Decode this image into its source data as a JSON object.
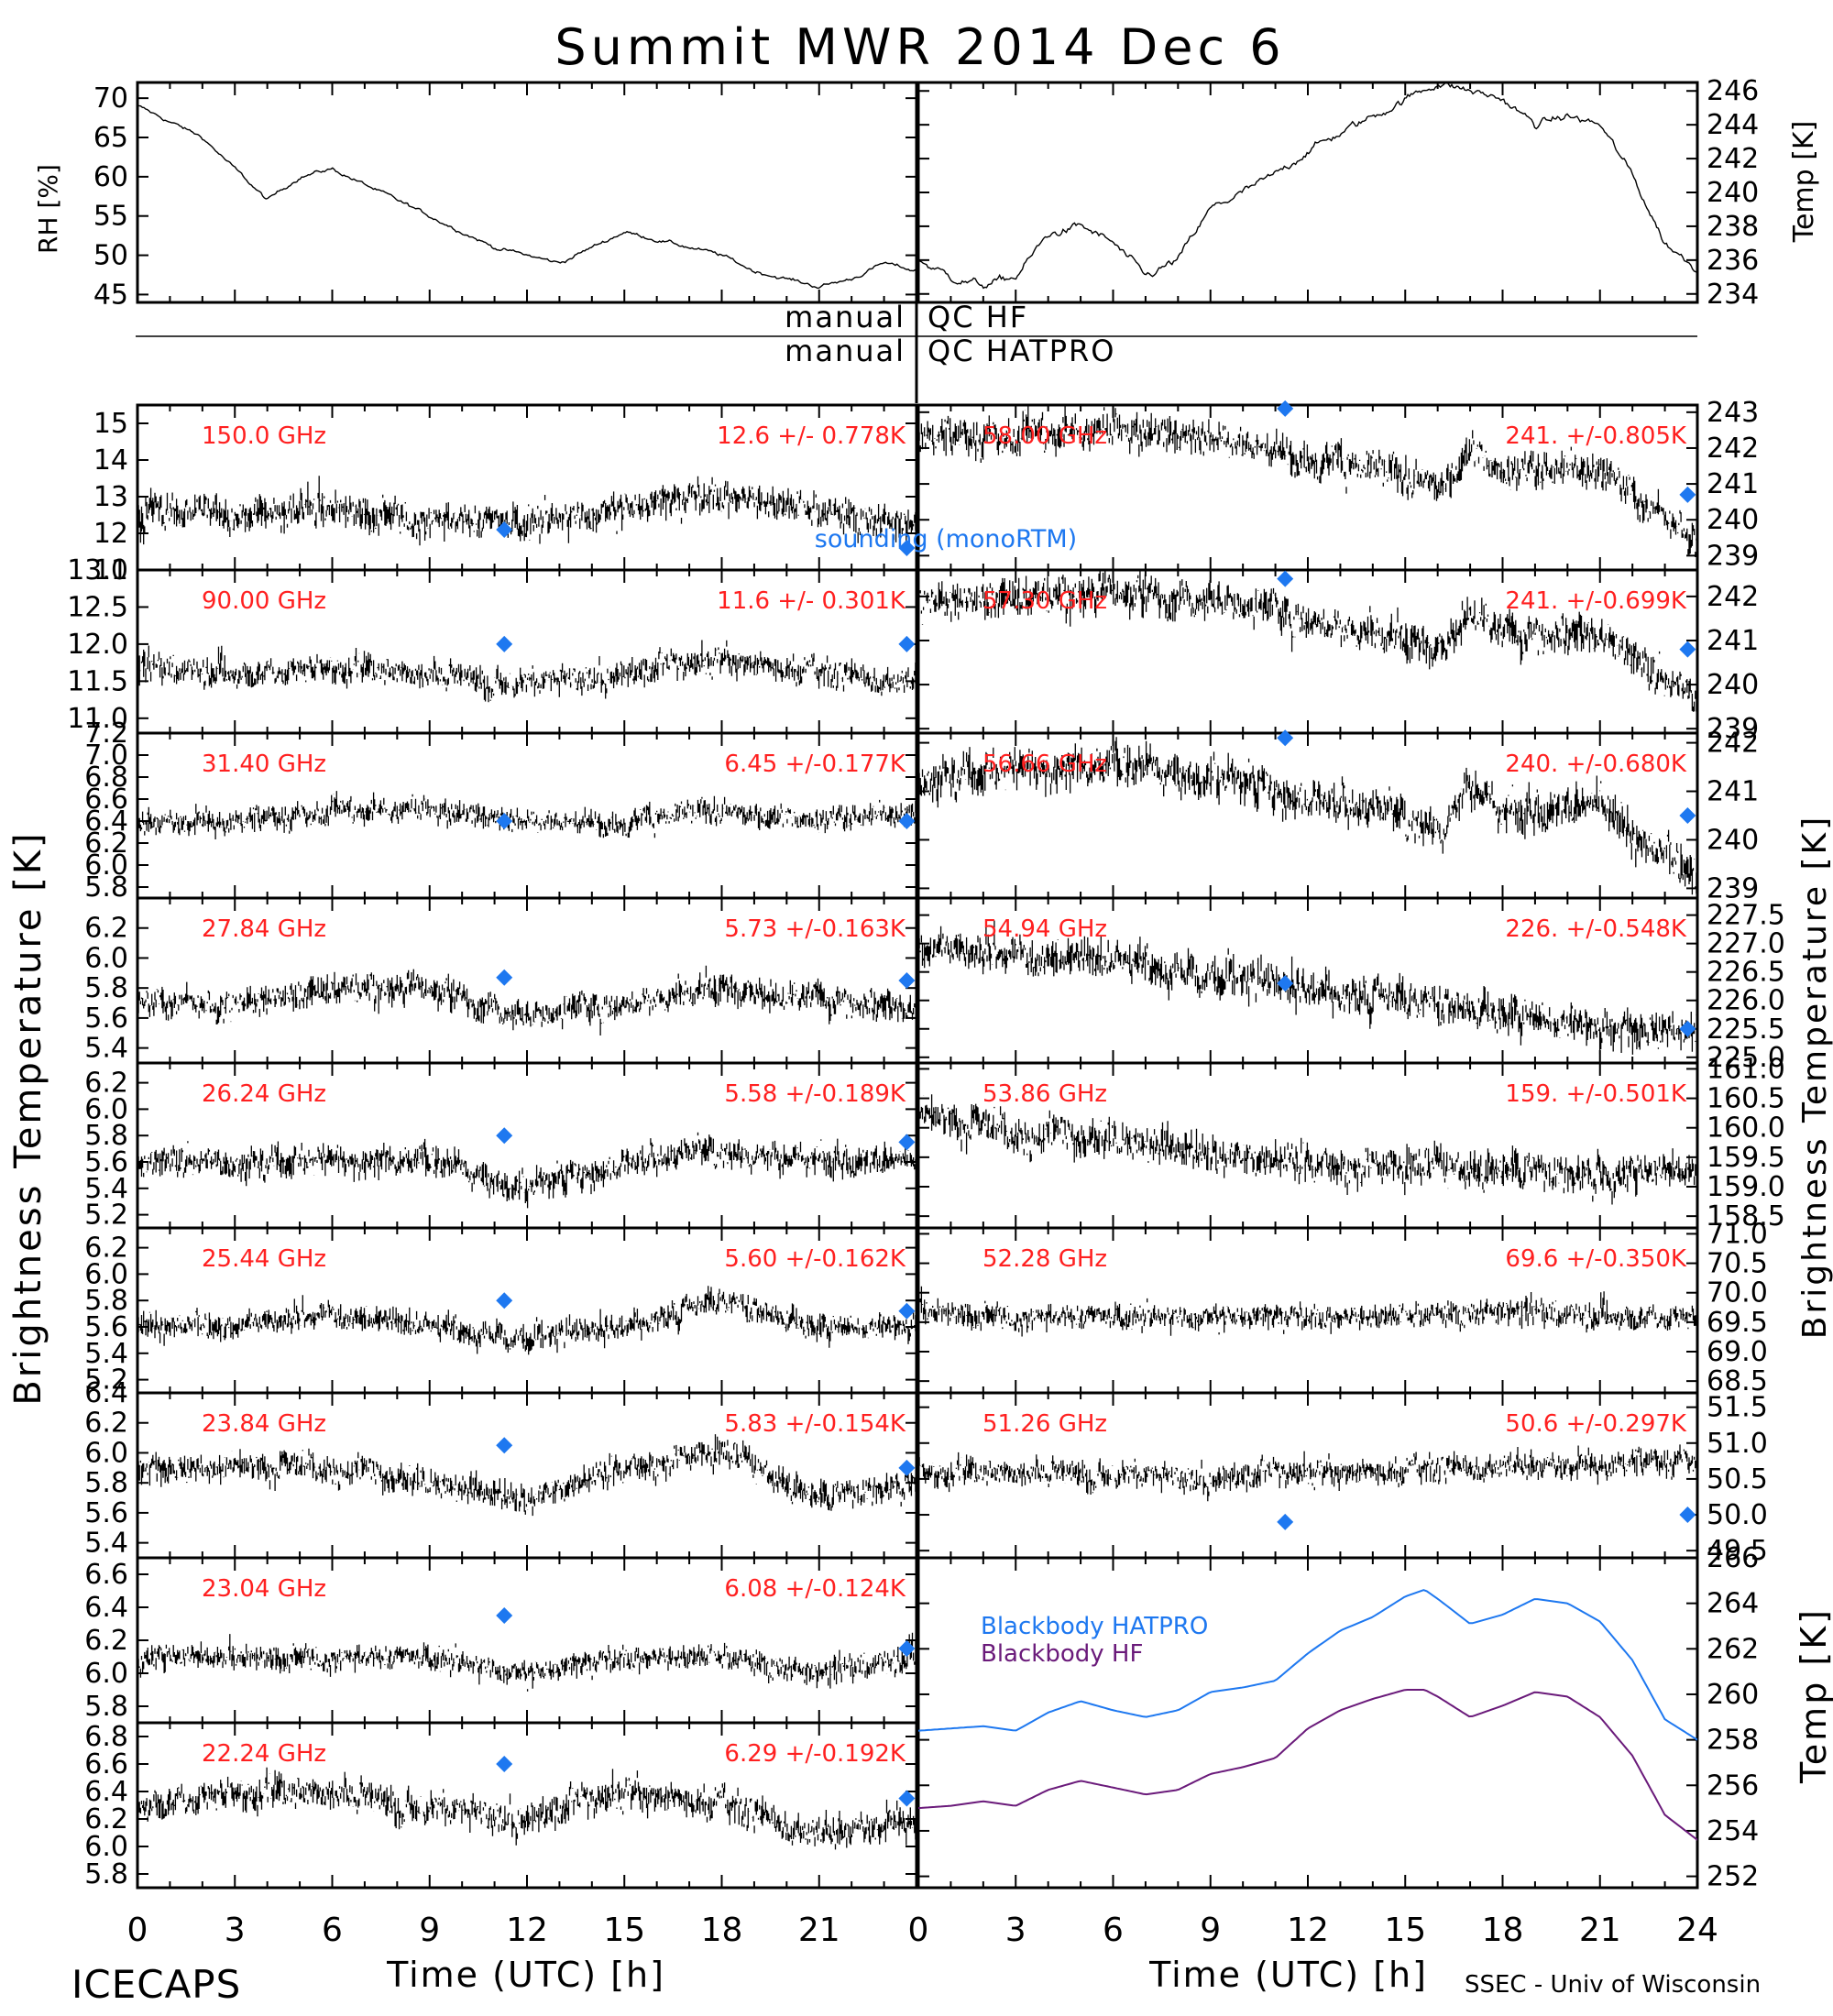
{
  "title": "Summit MWR 2014 Dec  6",
  "footer": {
    "left": "ICECAPS",
    "right": "SSEC - Univ of Wisconsin"
  },
  "colors": {
    "data": "#000000",
    "label": "#ff2020",
    "sounding": "#1e78f0",
    "hatpro": "#1e78f0",
    "hf": "#6a1a7a"
  },
  "qc": {
    "left1": "manual",
    "right1": "QC HF",
    "left2": "manual",
    "right2": "QC HATPRO"
  },
  "axis_labels": {
    "x_left": "Time (UTC) [h]",
    "x_right": "Time (UTC) [h]",
    "y_left": "Brightness Temperature [K]",
    "y_right_tb": "Brightness Temperature [K]",
    "rh": "RH [%]",
    "temp_top": "Temp [K]",
    "temp_bb": "Temp [K]"
  },
  "x_ticks": [
    "0",
    "3",
    "6",
    "9",
    "12",
    "15",
    "18",
    "21",
    "0",
    "3",
    "6",
    "9",
    "12",
    "15",
    "18",
    "21",
    "24"
  ],
  "chart_data": [
    {
      "id": "rh",
      "type": "line",
      "ylabel": "RH [%]",
      "xlim": [
        0,
        24
      ],
      "ylim": [
        44,
        72
      ],
      "yticks": [
        45,
        50,
        55,
        60,
        65,
        70
      ],
      "x": [
        0,
        1,
        2,
        3,
        4,
        5,
        6,
        7,
        8,
        9,
        10,
        11,
        12,
        13,
        14,
        15,
        16,
        17,
        18,
        19,
        20,
        21,
        22,
        23,
        24
      ],
      "values": [
        69,
        67,
        65,
        61,
        57,
        60,
        61,
        59,
        57,
        55,
        53,
        51,
        50,
        49,
        51,
        53,
        52,
        51,
        50,
        48,
        47,
        46,
        47,
        49,
        48
      ]
    },
    {
      "id": "temp_top",
      "type": "line",
      "ylabel": "Temp [K]",
      "xlim": [
        0,
        24
      ],
      "ylim": [
        233.5,
        246.5
      ],
      "yticks": [
        234,
        236,
        238,
        240,
        242,
        244,
        246
      ],
      "x": [
        0,
        1,
        2,
        3,
        4,
        5,
        6,
        7,
        8,
        9,
        10,
        11,
        12,
        13,
        14,
        15,
        16,
        17,
        18,
        19,
        20,
        21,
        22,
        23,
        24
      ],
      "values": [
        236,
        235,
        234.5,
        235,
        237.5,
        238,
        237,
        235,
        236,
        239,
        240,
        241,
        242.5,
        243.5,
        244.5,
        245.5,
        246.5,
        246,
        245.5,
        244,
        244.5,
        244,
        241,
        237,
        235.5
      ]
    },
    {
      "id": "tb150",
      "type": "scatter",
      "label": "150.0 GHz",
      "stat": "12.6 +/- 0.778K",
      "ylim": [
        11,
        15.5
      ],
      "yticks": [
        11,
        12,
        13,
        14,
        15
      ],
      "mean": 12.6,
      "sd": 0.778,
      "x": [
        0,
        3,
        6,
        9,
        12,
        15,
        18,
        21,
        24
      ],
      "values": [
        12.6,
        12.5,
        12.7,
        12.4,
        12.3,
        12.7,
        13.1,
        12.6,
        12.2
      ],
      "sounding": [
        [
          11.3,
          12.1
        ],
        [
          23.7,
          11.6
        ]
      ]
    },
    {
      "id": "tb90",
      "type": "scatter",
      "label": "90.00 GHz",
      "stat": "11.6 +/- 0.301K",
      "ylim": [
        10.8,
        13.0
      ],
      "yticks": [
        11.0,
        11.5,
        12.0,
        12.5,
        13.0
      ],
      "mean": 11.6,
      "sd": 0.301,
      "x": [
        0,
        3,
        6,
        9,
        12,
        15,
        18,
        21,
        24
      ],
      "values": [
        11.7,
        11.6,
        11.7,
        11.6,
        11.5,
        11.6,
        11.8,
        11.6,
        11.5
      ],
      "sounding": [
        [
          11.3,
          12.0
        ],
        [
          23.7,
          12.0
        ]
      ]
    },
    {
      "id": "tb31",
      "type": "scatter",
      "label": "31.40 GHz",
      "stat": "6.45 +/-0.177K",
      "ylim": [
        5.7,
        7.2
      ],
      "yticks": [
        5.8,
        6.0,
        6.2,
        6.4,
        6.6,
        6.8,
        7.0,
        7.2
      ],
      "mean": 6.45,
      "sd": 0.177,
      "x": [
        0,
        3,
        6,
        9,
        12,
        15,
        18,
        21,
        24
      ],
      "values": [
        6.4,
        6.4,
        6.5,
        6.5,
        6.4,
        6.4,
        6.5,
        6.4,
        6.5
      ],
      "sounding": [
        [
          11.3,
          6.4
        ],
        [
          23.7,
          6.4
        ]
      ]
    },
    {
      "id": "tb27",
      "type": "scatter",
      "label": "27.84 GHz",
      "stat": "5.73 +/-0.163K",
      "ylim": [
        5.3,
        6.4
      ],
      "yticks": [
        5.4,
        5.6,
        5.8,
        6.0,
        6.2
      ],
      "mean": 5.73,
      "sd": 0.163,
      "x": [
        0,
        3,
        6,
        9,
        12,
        15,
        18,
        21,
        24
      ],
      "values": [
        5.7,
        5.7,
        5.8,
        5.8,
        5.6,
        5.7,
        5.8,
        5.7,
        5.7
      ],
      "sounding": [
        [
          11.3,
          5.87
        ],
        [
          23.7,
          5.85
        ]
      ]
    },
    {
      "id": "tb26",
      "type": "scatter",
      "label": "26.24 GHz",
      "stat": "5.58 +/-0.189K",
      "ylim": [
        5.1,
        6.35
      ],
      "yticks": [
        5.2,
        5.4,
        5.6,
        5.8,
        6.0,
        6.2
      ],
      "mean": 5.58,
      "sd": 0.189,
      "x": [
        0,
        3,
        6,
        9,
        12,
        15,
        18,
        21,
        24
      ],
      "values": [
        5.6,
        5.6,
        5.6,
        5.6,
        5.4,
        5.6,
        5.7,
        5.6,
        5.6
      ],
      "sounding": [
        [
          11.3,
          5.8
        ],
        [
          23.7,
          5.75
        ]
      ]
    },
    {
      "id": "tb25",
      "type": "scatter",
      "label": "25.44 GHz",
      "stat": "5.60 +/-0.162K",
      "ylim": [
        5.1,
        6.35
      ],
      "yticks": [
        5.2,
        5.4,
        5.6,
        5.8,
        6.0,
        6.2
      ],
      "mean": 5.6,
      "sd": 0.162,
      "x": [
        0,
        3,
        6,
        9,
        12,
        15,
        18,
        21,
        24
      ],
      "values": [
        5.6,
        5.6,
        5.7,
        5.6,
        5.5,
        5.6,
        5.8,
        5.6,
        5.6
      ],
      "sounding": [
        [
          11.3,
          5.8
        ],
        [
          23.7,
          5.72
        ]
      ]
    },
    {
      "id": "tb23_8",
      "type": "scatter",
      "label": "23.84 GHz",
      "stat": "5.83 +/-0.154K",
      "ylim": [
        5.3,
        6.4
      ],
      "yticks": [
        5.4,
        5.6,
        5.8,
        6.0,
        6.2,
        6.4
      ],
      "mean": 5.83,
      "sd": 0.154,
      "x": [
        0,
        3,
        6,
        9,
        12,
        15,
        18,
        21,
        24
      ],
      "values": [
        5.9,
        5.9,
        5.9,
        5.8,
        5.7,
        5.9,
        6.0,
        5.7,
        5.8
      ],
      "sounding": [
        [
          11.3,
          6.05
        ],
        [
          23.7,
          5.9
        ]
      ]
    },
    {
      "id": "tb23_0",
      "type": "scatter",
      "label": "23.04 GHz",
      "stat": "6.08 +/-0.124K",
      "ylim": [
        5.7,
        6.7
      ],
      "yticks": [
        5.8,
        6.0,
        6.2,
        6.4,
        6.6
      ],
      "mean": 6.08,
      "sd": 0.124,
      "x": [
        0,
        3,
        6,
        9,
        12,
        15,
        18,
        21,
        24
      ],
      "values": [
        6.1,
        6.1,
        6.1,
        6.1,
        6.0,
        6.1,
        6.1,
        6.0,
        6.1
      ],
      "sounding": [
        [
          11.3,
          6.35
        ],
        [
          23.7,
          6.15
        ]
      ]
    },
    {
      "id": "tb22",
      "type": "scatter",
      "label": "22.24 GHz",
      "stat": "6.29 +/-0.192K",
      "ylim": [
        5.7,
        6.9
      ],
      "yticks": [
        5.8,
        6.0,
        6.2,
        6.4,
        6.6,
        6.8
      ],
      "mean": 6.29,
      "sd": 0.192,
      "x": [
        0,
        3,
        6,
        9,
        12,
        15,
        18,
        21,
        24
      ],
      "values": [
        6.3,
        6.4,
        6.4,
        6.3,
        6.2,
        6.4,
        6.3,
        6.1,
        6.2
      ],
      "sounding": [
        [
          11.3,
          6.6
        ],
        [
          23.7,
          6.35
        ]
      ]
    },
    {
      "id": "tb58",
      "type": "scatter",
      "label": "58.00 GHz",
      "stat": "241. +/-0.805K",
      "ylim": [
        238.6,
        243.2
      ],
      "yticks": [
        239,
        240,
        241,
        242,
        243
      ],
      "mean": 241,
      "sd": 0.805,
      "x": [
        0,
        3,
        6,
        9,
        12,
        15,
        16.2,
        17,
        18,
        21,
        22.5,
        24
      ],
      "values": [
        242.3,
        242.4,
        242.5,
        242.3,
        241.8,
        241.2,
        241.0,
        242.0,
        241.3,
        241.5,
        240.3,
        239.6
      ],
      "sounding": [
        [
          11.3,
          243.1
        ],
        [
          23.7,
          240.7
        ]
      ]
    },
    {
      "id": "tb57",
      "type": "scatter",
      "label": "57.30 GHz",
      "stat": "241. +/-0.699K",
      "ylim": [
        238.9,
        242.6
      ],
      "yticks": [
        239,
        240,
        241,
        242
      ],
      "mean": 241,
      "sd": 0.699,
      "x": [
        0,
        3,
        6,
        9,
        12,
        15,
        16.2,
        17,
        18,
        21,
        22.5,
        24
      ],
      "values": [
        241.9,
        242.0,
        242.1,
        241.9,
        241.5,
        241.0,
        240.8,
        241.7,
        241.0,
        241.3,
        240.3,
        239.7
      ],
      "sounding": [
        [
          11.3,
          242.4
        ],
        [
          23.7,
          240.8
        ]
      ]
    },
    {
      "id": "tb56",
      "type": "scatter",
      "label": "56.66 GHz",
      "stat": "240. +/-0.680K",
      "ylim": [
        238.8,
        242.2
      ],
      "yticks": [
        239,
        240,
        241,
        242
      ],
      "mean": 240,
      "sd": 0.68,
      "x": [
        0,
        3,
        6,
        9,
        12,
        15,
        16.2,
        17,
        18,
        21,
        22.5,
        24
      ],
      "values": [
        241.3,
        241.4,
        241.5,
        241.3,
        240.9,
        240.5,
        240.3,
        241.2,
        240.5,
        240.7,
        239.8,
        239.3
      ],
      "sounding": [
        [
          11.3,
          242.1
        ],
        [
          23.7,
          240.5
        ]
      ]
    },
    {
      "id": "tb54",
      "type": "scatter",
      "label": "54.94 GHz",
      "stat": "226. +/-0.548K",
      "ylim": [
        224.9,
        227.8
      ],
      "yticks": [
        225.0,
        225.5,
        226.0,
        226.5,
        227.0,
        227.5
      ],
      "mean": 226,
      "sd": 0.548,
      "x": [
        0,
        3,
        6,
        9,
        12,
        15,
        18,
        21,
        24
      ],
      "values": [
        226.9,
        226.8,
        226.7,
        226.4,
        226.2,
        226.0,
        225.8,
        225.5,
        225.5
      ],
      "sounding": [
        [
          11.3,
          226.3
        ],
        [
          23.7,
          225.5
        ]
      ]
    },
    {
      "id": "tb53",
      "type": "scatter",
      "label": "53.86 GHz",
      "stat": "159. +/-0.501K",
      "ylim": [
        158.3,
        161.1
      ],
      "yticks": [
        158.5,
        159.0,
        159.5,
        160.0,
        160.5,
        161.0
      ],
      "mean": 159,
      "sd": 0.501,
      "x": [
        0,
        3,
        6,
        9,
        12,
        15,
        18,
        21,
        24
      ],
      "values": [
        160.2,
        159.9,
        159.8,
        159.6,
        159.4,
        159.3,
        159.3,
        159.2,
        159.3
      ],
      "sounding": []
    },
    {
      "id": "tb52",
      "type": "scatter",
      "label": "52.28 GHz",
      "stat": "69.6 +/-0.350K",
      "ylim": [
        68.3,
        71.1
      ],
      "yticks": [
        68.5,
        69.0,
        69.5,
        70.0,
        70.5,
        71.0
      ],
      "mean": 69.6,
      "sd": 0.35,
      "x": [
        0,
        3,
        6,
        9,
        12,
        15,
        18,
        21,
        24
      ],
      "values": [
        69.7,
        69.6,
        69.6,
        69.6,
        69.6,
        69.6,
        69.7,
        69.6,
        69.6
      ],
      "sounding": []
    },
    {
      "id": "tb51",
      "type": "scatter",
      "label": "51.26 GHz",
      "stat": "50.6 +/-0.297K",
      "ylim": [
        49.4,
        51.7
      ],
      "yticks": [
        49.5,
        50.0,
        50.5,
        51.0,
        51.5
      ],
      "mean": 50.6,
      "sd": 0.297,
      "x": [
        0,
        3,
        6,
        9,
        12,
        15,
        18,
        21,
        24
      ],
      "values": [
        50.6,
        50.6,
        50.6,
        50.5,
        50.6,
        50.6,
        50.7,
        50.7,
        50.8
      ],
      "sounding": [
        [
          11.3,
          49.9
        ],
        [
          23.7,
          50.0
        ]
      ]
    },
    {
      "id": "bb",
      "type": "line",
      "ylabel": "Temp [K]",
      "xlim": [
        0,
        24
      ],
      "ylim": [
        251.5,
        266
      ],
      "yticks": [
        252,
        254,
        256,
        258,
        260,
        262,
        264,
        266
      ],
      "x": [
        0,
        1,
        2,
        3,
        4,
        5,
        6,
        7,
        8,
        9,
        10,
        11,
        12,
        13,
        14,
        15,
        15.6,
        16,
        17,
        18,
        19,
        20,
        21,
        22,
        23,
        24
      ],
      "series": [
        {
          "name": "Blackbody HATPRO",
          "values": [
            258.4,
            258.5,
            258.6,
            258.4,
            259.2,
            259.7,
            259.3,
            259.0,
            259.3,
            260.1,
            260.3,
            260.6,
            261.8,
            262.8,
            263.4,
            264.3,
            264.6,
            264.2,
            263.1,
            263.5,
            264.2,
            264.0,
            263.2,
            261.5,
            258.9,
            258.0
          ]
        },
        {
          "name": "Blackbody HF",
          "values": [
            255.0,
            255.1,
            255.3,
            255.1,
            255.8,
            256.2,
            255.9,
            255.6,
            255.8,
            256.5,
            256.8,
            257.2,
            258.5,
            259.3,
            259.8,
            260.2,
            260.2,
            259.9,
            259.0,
            259.5,
            260.1,
            259.9,
            259.0,
            257.3,
            254.7,
            253.6
          ]
        }
      ]
    }
  ]
}
